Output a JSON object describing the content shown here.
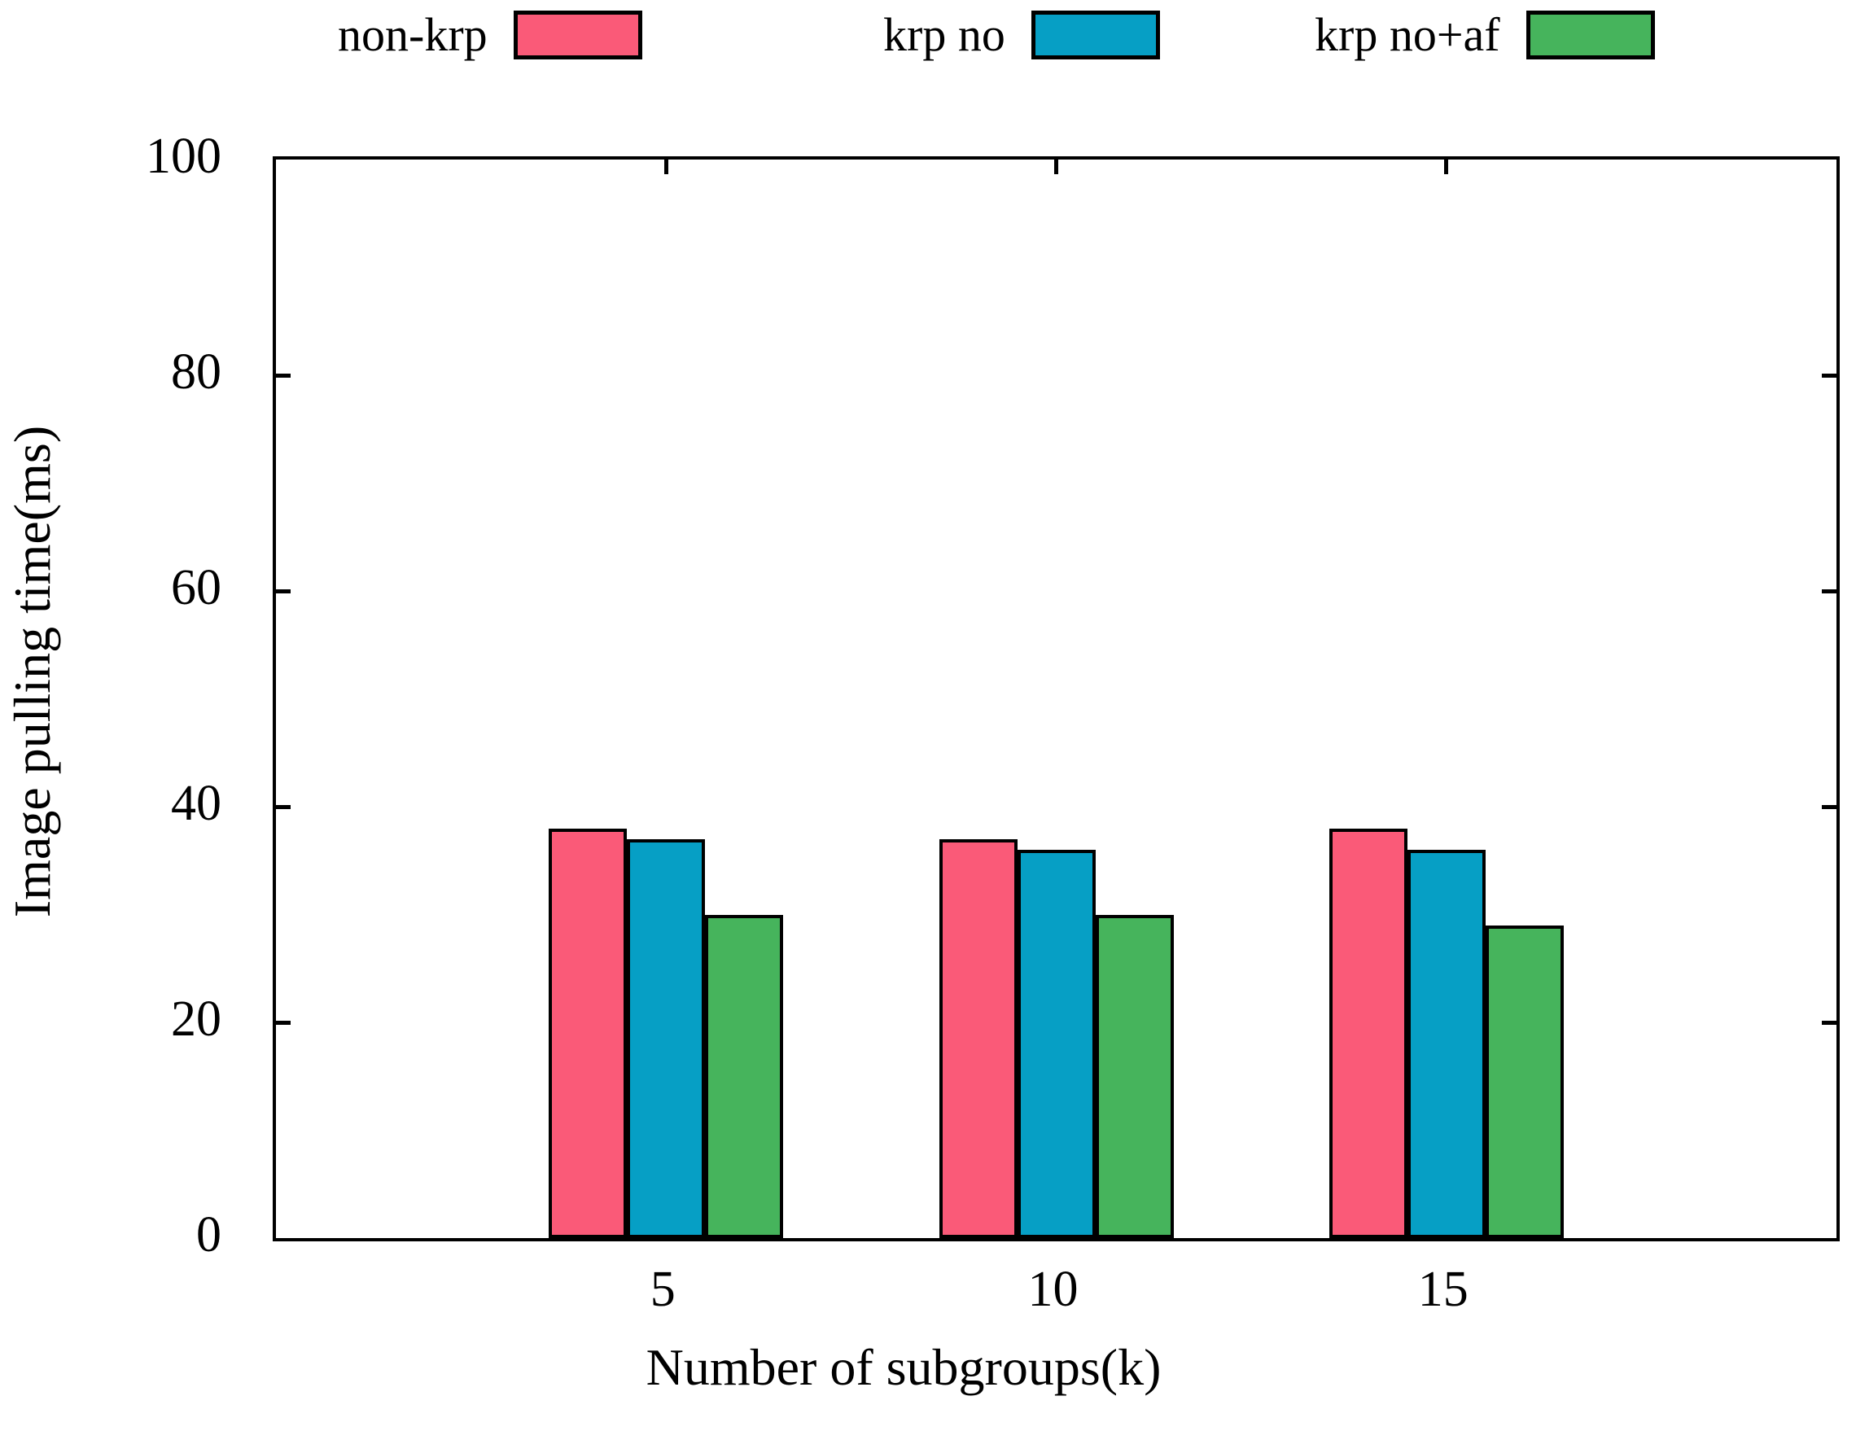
{
  "chart_data": {
    "type": "bar",
    "title": "",
    "xlabel": "Number of subgroups(k)",
    "ylabel": "Image pulling time(ms)",
    "categories": [
      "5",
      "10",
      "15"
    ],
    "series": [
      {
        "name": "non-krp",
        "color": "#fa5a78",
        "values": [
          38,
          37,
          38
        ]
      },
      {
        "name": "krp no",
        "color": "#069fc5",
        "values": [
          37,
          36,
          36
        ]
      },
      {
        "name": "krp no+af",
        "color": "#46b45c",
        "values": [
          30,
          30,
          29
        ]
      }
    ],
    "ylim": [
      0,
      100
    ],
    "yticks": [
      0,
      20,
      40,
      60,
      80,
      100
    ],
    "grid": false,
    "legend_position": "top",
    "bar_border_color": "#000000"
  }
}
